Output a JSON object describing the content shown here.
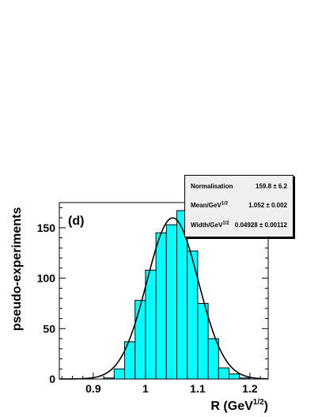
{
  "chart_data": {
    "type": "bar",
    "panel_label": "(d)",
    "xlabel": "R (GeV",
    "xlabel_sup": "1/2",
    "xlabel_tail": ")",
    "ylabel": "pseudo-experiments",
    "xlim": [
      0.835,
      1.235
    ],
    "ylim": [
      0,
      175
    ],
    "x_ticks": [
      0.9,
      1.0,
      1.1,
      1.2
    ],
    "x_tick_labels": [
      "0.9",
      "1",
      "1.1",
      "1.2"
    ],
    "y_ticks": [
      0,
      50,
      100,
      150
    ],
    "y_tick_labels": [
      "0",
      "50",
      "100",
      "150"
    ],
    "bin_width": 0.02,
    "bins": [
      {
        "x_low": 0.92,
        "value": 1
      },
      {
        "x_low": 0.94,
        "value": 10
      },
      {
        "x_low": 0.96,
        "value": 37
      },
      {
        "x_low": 0.98,
        "value": 78
      },
      {
        "x_low": 1.0,
        "value": 108
      },
      {
        "x_low": 1.02,
        "value": 145
      },
      {
        "x_low": 1.04,
        "value": 153
      },
      {
        "x_low": 1.06,
        "value": 167
      },
      {
        "x_low": 1.08,
        "value": 127
      },
      {
        "x_low": 1.1,
        "value": 75
      },
      {
        "x_low": 1.12,
        "value": 40
      },
      {
        "x_low": 1.14,
        "value": 11
      },
      {
        "x_low": 1.16,
        "value": 5
      },
      {
        "x_low": 1.18,
        "value": 1
      }
    ],
    "fit": {
      "function": "gaussian",
      "amplitude": 159.8,
      "mean": 1.052,
      "width": 0.04928
    },
    "fill_color": "#00ffff",
    "fit_color": "#000000"
  },
  "stats": {
    "rows": [
      {
        "label": "Normalisation",
        "label_sup": "",
        "value": "159.8 ± 6.2"
      },
      {
        "label": "Mean/GeV",
        "label_sup": "1/2",
        "value": "1.052 ± 0.002"
      },
      {
        "label": "Width/GeV",
        "label_sup": "1/2",
        "value": "0.04928 ± 0.00112"
      }
    ]
  }
}
